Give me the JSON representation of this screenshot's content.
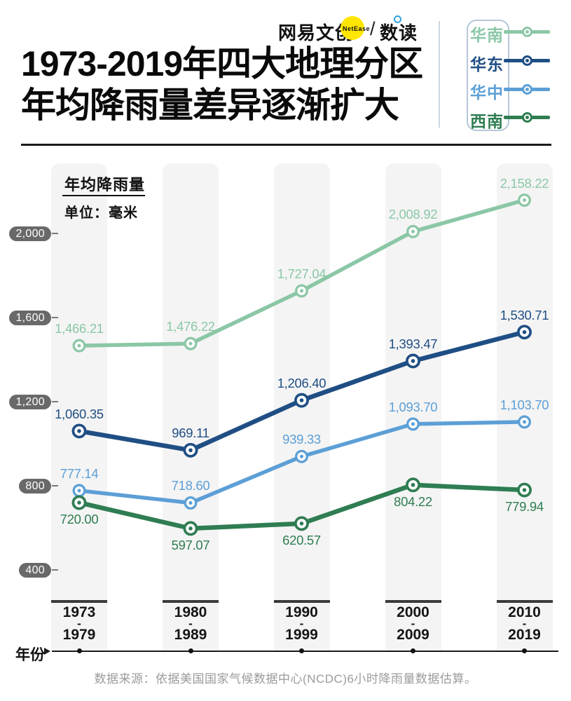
{
  "brand": {
    "name": "网易文创",
    "badge": "NetEase",
    "slash": "/",
    "product": "数读"
  },
  "title": {
    "line1": "1973-2019年四大地理分区",
    "line2": "年均降雨量差异逐渐扩大"
  },
  "chart": {
    "panel_title": "年均降雨量",
    "panel_unit": "单位：毫米",
    "y_ticks": [
      "2,000",
      "1,600",
      "1,200",
      "800",
      "400"
    ],
    "x_label": "年份",
    "periods": [
      {
        "start": "1973",
        "end": "1979"
      },
      {
        "start": "1980",
        "end": "1989"
      },
      {
        "start": "1990",
        "end": "1999"
      },
      {
        "start": "2000",
        "end": "2009"
      },
      {
        "start": "2010",
        "end": "2019"
      }
    ]
  },
  "chart_data": {
    "type": "line",
    "title": "1973-2019年四大地理分区年均降雨量差异逐渐扩大",
    "ylabel": "年均降雨量",
    "unit": "毫米",
    "categories": [
      "1973-1979",
      "1980-1989",
      "1990-1999",
      "2000-2009",
      "2010-2019"
    ],
    "y_axis_ticks": [
      2000,
      1600,
      1200,
      800,
      400
    ],
    "ylim": [
      280,
      2250
    ],
    "grid": false,
    "legend_position": "top-right",
    "series": [
      {
        "name": "华南",
        "color": "#8BC7A6",
        "values": [
          1466.21,
          1476.22,
          1727.04,
          2008.92,
          2158.22
        ],
        "labels": [
          "1,466.21",
          "1,476.22",
          "1,727.04",
          "2,008.92",
          "2,158.22"
        ],
        "label_side": "above"
      },
      {
        "name": "华东",
        "color": "#1F4E84",
        "values": [
          1060.35,
          969.11,
          1206.4,
          1393.47,
          1530.71
        ],
        "labels": [
          "1,060.35",
          "969.11",
          "1,206.40",
          "1,393.47",
          "1,530.71"
        ],
        "label_side": "above"
      },
      {
        "name": "华中",
        "color": "#5C9FD6",
        "values": [
          777.14,
          718.6,
          939.33,
          1093.7,
          1103.7
        ],
        "labels": [
          "777.14",
          "718.60",
          "939.33",
          "1,093.70",
          "1,103.70"
        ],
        "label_side": "above"
      },
      {
        "name": "西南",
        "color": "#2F7D52",
        "values": [
          720.0,
          597.07,
          620.57,
          804.22,
          779.94
        ],
        "labels": [
          "720.00",
          "597.07",
          "620.57",
          "804.22",
          "779.94"
        ],
        "label_side": "below"
      }
    ]
  },
  "footer": {
    "source": "数据来源：依据美国国家气候数据中心(NCDC)6小时降雨量数据估算。"
  }
}
